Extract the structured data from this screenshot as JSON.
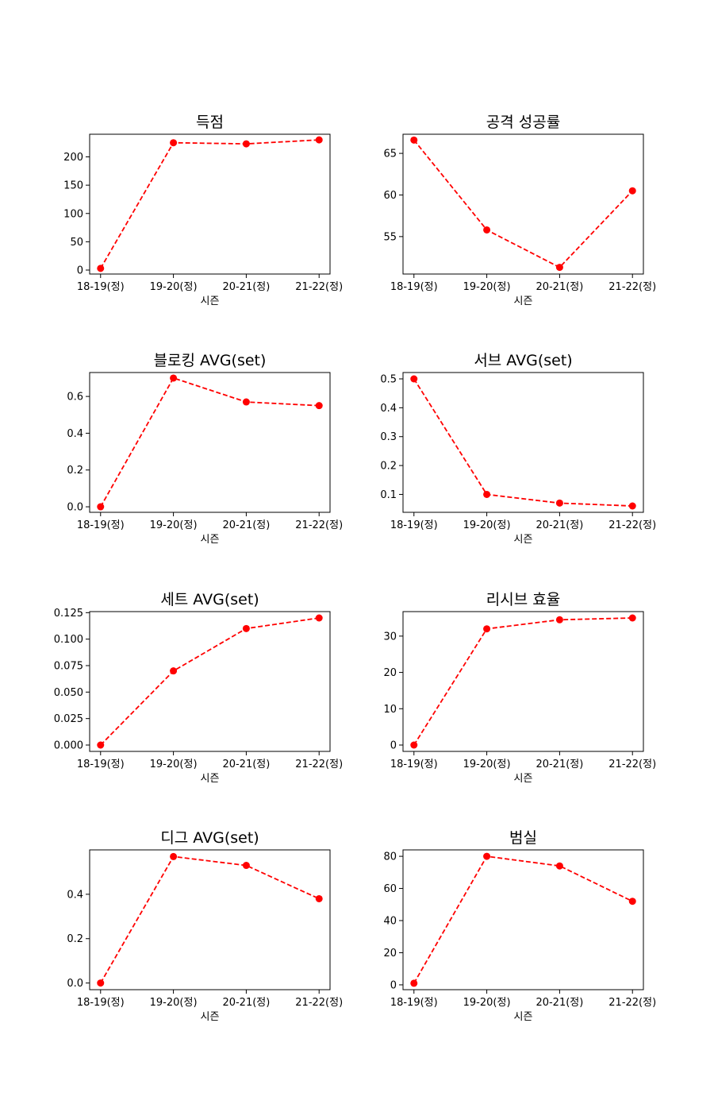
{
  "chart_data": [
    {
      "type": "line",
      "title": "득점",
      "xlabel": "시즌",
      "ylabel": "",
      "categories": [
        "18-19(정)",
        "19-20(정)",
        "20-21(정)",
        "21-22(정)"
      ],
      "values": [
        3,
        225,
        223,
        230
      ],
      "ylim": [
        -7,
        240
      ],
      "yticks": [
        0,
        50,
        100,
        150,
        200
      ],
      "ytick_labels": [
        "0",
        "50",
        "100",
        "150",
        "200"
      ],
      "color": "#ff0000",
      "line_style": "dashed",
      "marker": "circle",
      "grid": false
    },
    {
      "type": "line",
      "title": "공격 성공률",
      "xlabel": "시즌",
      "ylabel": "",
      "categories": [
        "18-19(정)",
        "19-20(정)",
        "20-21(정)",
        "21-22(정)"
      ],
      "values": [
        66.6,
        55.8,
        51.3,
        60.5
      ],
      "ylim": [
        50.5,
        67.3
      ],
      "yticks": [
        55,
        60,
        65
      ],
      "ytick_labels": [
        "55",
        "60",
        "65"
      ],
      "color": "#ff0000",
      "line_style": "dashed",
      "marker": "circle",
      "grid": false
    },
    {
      "type": "line",
      "title": "블로킹 AVG(set)",
      "xlabel": "시즌",
      "ylabel": "",
      "categories": [
        "18-19(정)",
        "19-20(정)",
        "20-21(정)",
        "21-22(정)"
      ],
      "values": [
        0.0,
        0.7,
        0.57,
        0.55
      ],
      "ylim": [
        -0.03,
        0.73
      ],
      "yticks": [
        0.0,
        0.2,
        0.4,
        0.6
      ],
      "ytick_labels": [
        "0.0",
        "0.2",
        "0.4",
        "0.6"
      ],
      "color": "#ff0000",
      "line_style": "dashed",
      "marker": "circle",
      "grid": false
    },
    {
      "type": "line",
      "title": "서브 AVG(set)",
      "xlabel": "시즌",
      "ylabel": "",
      "categories": [
        "18-19(정)",
        "19-20(정)",
        "20-21(정)",
        "21-22(정)"
      ],
      "values": [
        0.5,
        0.1,
        0.07,
        0.06
      ],
      "ylim": [
        0.038,
        0.522
      ],
      "yticks": [
        0.1,
        0.2,
        0.3,
        0.4,
        0.5
      ],
      "ytick_labels": [
        "0.1",
        "0.2",
        "0.3",
        "0.4",
        "0.5"
      ],
      "color": "#ff0000",
      "line_style": "dashed",
      "marker": "circle",
      "grid": false
    },
    {
      "type": "line",
      "title": "세트 AVG(set)",
      "xlabel": "시즌",
      "ylabel": "",
      "categories": [
        "18-19(정)",
        "19-20(정)",
        "20-21(정)",
        "21-22(정)"
      ],
      "values": [
        0.0,
        0.07,
        0.11,
        0.12
      ],
      "ylim": [
        -0.006,
        0.126
      ],
      "yticks": [
        0.0,
        0.025,
        0.05,
        0.075,
        0.1,
        0.125
      ],
      "ytick_labels": [
        "0.000",
        "0.025",
        "0.050",
        "0.075",
        "0.100",
        "0.125"
      ],
      "color": "#ff0000",
      "line_style": "dashed",
      "marker": "circle",
      "grid": false
    },
    {
      "type": "line",
      "title": "리시브 효율",
      "xlabel": "시즌",
      "ylabel": "",
      "categories": [
        "18-19(정)",
        "19-20(정)",
        "20-21(정)",
        "21-22(정)"
      ],
      "values": [
        0.0,
        32.0,
        34.5,
        35.0
      ],
      "ylim": [
        -1.75,
        36.75
      ],
      "yticks": [
        0,
        10,
        20,
        30
      ],
      "ytick_labels": [
        "0",
        "10",
        "20",
        "30"
      ],
      "color": "#ff0000",
      "line_style": "dashed",
      "marker": "circle",
      "grid": false
    },
    {
      "type": "line",
      "title": "디그 AVG(set)",
      "xlabel": "시즌",
      "ylabel": "",
      "categories": [
        "18-19(정)",
        "19-20(정)",
        "20-21(정)",
        "21-22(정)"
      ],
      "values": [
        0.0,
        0.57,
        0.53,
        0.38
      ],
      "ylim": [
        -0.03,
        0.6
      ],
      "yticks": [
        0.0,
        0.2,
        0.4
      ],
      "ytick_labels": [
        "0.0",
        "0.2",
        "0.4"
      ],
      "color": "#ff0000",
      "line_style": "dashed",
      "marker": "circle",
      "grid": false
    },
    {
      "type": "line",
      "title": "범실",
      "xlabel": "시즌",
      "ylabel": "",
      "categories": [
        "18-19(정)",
        "19-20(정)",
        "20-21(정)",
        "21-22(정)"
      ],
      "values": [
        1,
        80,
        74,
        52
      ],
      "ylim": [
        -3,
        84
      ],
      "yticks": [
        0,
        20,
        40,
        60,
        80
      ],
      "ytick_labels": [
        "0",
        "20",
        "40",
        "60",
        "80"
      ],
      "color": "#ff0000",
      "line_style": "dashed",
      "marker": "circle",
      "grid": false
    }
  ]
}
